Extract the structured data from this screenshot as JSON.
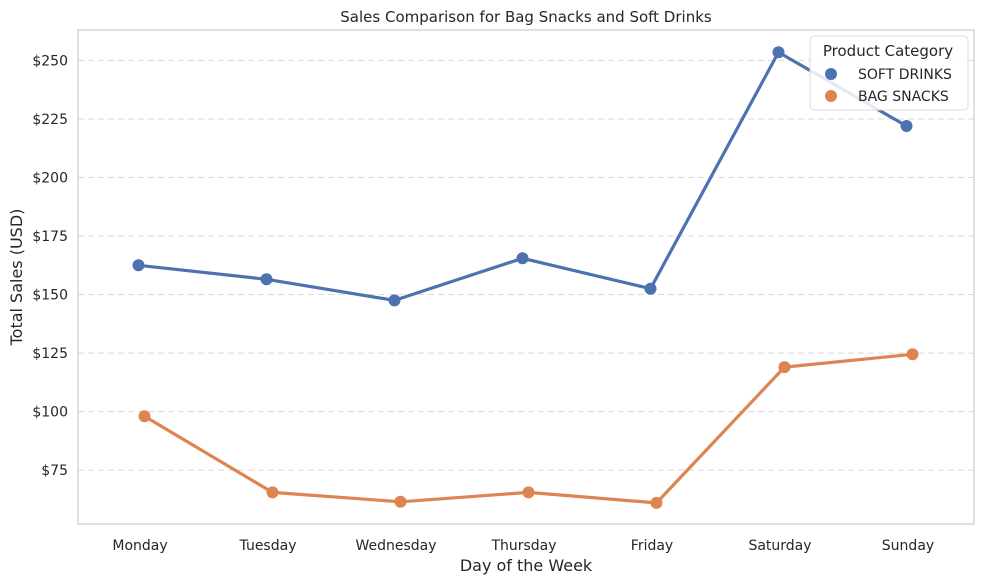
{
  "chart_data": {
    "type": "line",
    "title": "Sales Comparison for Bag Snacks and Soft Drinks",
    "xlabel": "Day of the Week",
    "ylabel": "Total Sales (USD)",
    "categories": [
      "Monday",
      "Tuesday",
      "Wednesday",
      "Thursday",
      "Friday",
      "Saturday",
      "Sunday"
    ],
    "yticks": [
      75,
      100,
      125,
      150,
      175,
      200,
      225,
      250
    ],
    "ytick_labels": [
      "$75",
      "$100",
      "$125",
      "$150",
      "$175",
      "$200",
      "$225",
      "$250"
    ],
    "ylim": [
      52,
      263
    ],
    "grid": "horizontal dashed",
    "legend": {
      "title": "Product Category",
      "placement": "top-right"
    },
    "series": [
      {
        "name": "SOFT DRINKS",
        "color": "#4c72b0",
        "values": [
          162.5,
          156.5,
          147.5,
          165.5,
          152.5,
          253.5,
          222
        ]
      },
      {
        "name": "BAG SNACKS",
        "color": "#dd8452",
        "values": [
          98,
          65.5,
          61.5,
          65.5,
          61,
          119,
          124.5
        ]
      }
    ]
  }
}
